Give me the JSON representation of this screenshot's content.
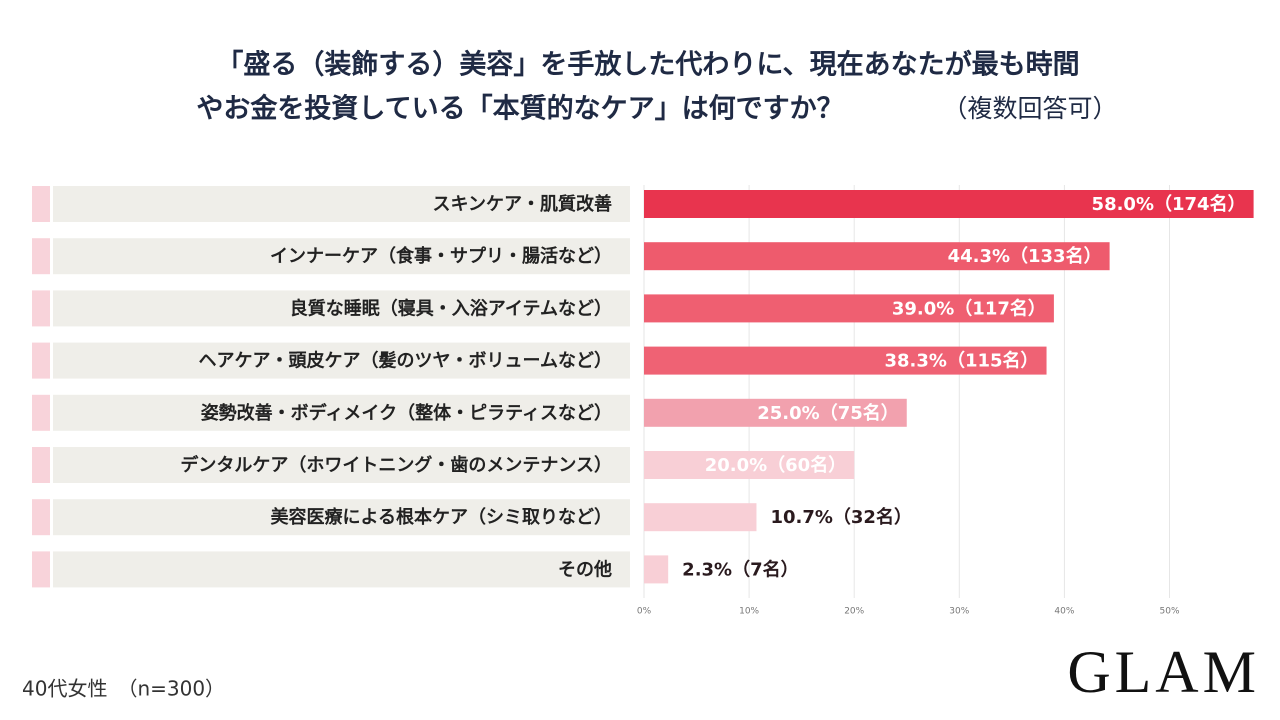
{
  "chart_data": {
    "type": "bar",
    "title": [
      "「盛る（装飾する）美容」を手放した代わりに、現在あなたが最も時間",
      "やお金を投資している「本質的なケア」は何ですか？"
    ],
    "title_note": "（複数回答可）",
    "categories": [
      "スキンケア・肌質改善",
      "インナーケア（食事・サプリ・腸活など）",
      "良質な睡眠（寝具・入浴アイテムなど）",
      "ヘアケア・頭皮ケア（髪のツヤ・ボリュームなど）",
      "姿勢改善・ボディメイク（整体・ピラティスなど）",
      "デンタルケア（ホワイトニング・歯のメンテナンス）",
      "美容医療による根本ケア（シミ取りなど）",
      "その他"
    ],
    "values": [
      58.0,
      44.3,
      39.0,
      38.3,
      25.0,
      20.0,
      10.7,
      2.3
    ],
    "value_labels": [
      "58.0%（174名）",
      "44.3%（133名）",
      "39.0%（117名）",
      "38.3%（115名）",
      "25.0%（75名）",
      "20.0%（60名）",
      "10.7%（32名）",
      "2.3%（7名）"
    ],
    "colors": [
      "#e8344e",
      "#ee5b6d",
      "#ef5f71",
      "#ef6274",
      "#f2a1ae",
      "#f8cfd6",
      "#f8cfd6",
      "#f8cfd6"
    ],
    "xlim": [
      0,
      58.8
    ],
    "xticks": [
      {
        "value": 0,
        "label": "0%"
      },
      {
        "value": 10,
        "label": "10%"
      },
      {
        "value": 20,
        "label": "20%"
      },
      {
        "value": 30,
        "label": "30%"
      },
      {
        "value": 40,
        "label": "40%"
      },
      {
        "value": 50,
        "label": "50%"
      }
    ],
    "grid": true,
    "note": "40代女性　（n=300）",
    "brand": "GLAM"
  }
}
